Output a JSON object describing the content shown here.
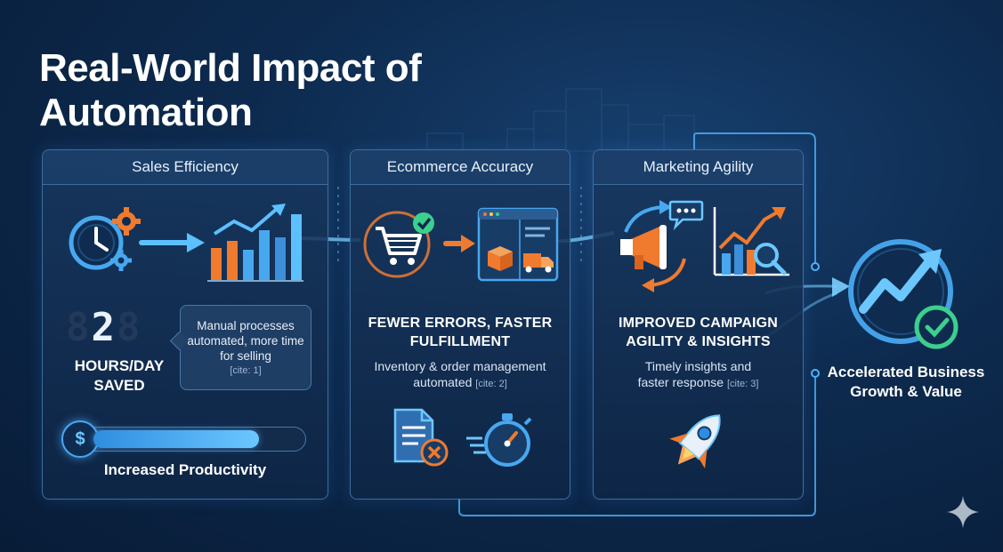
{
  "title": "Real-World Impact of Automation",
  "panels": {
    "sales": {
      "header": "Sales Efficiency",
      "metric_value": "2",
      "metric_label": "HOURS/DAY SAVED",
      "bubble_text": "Manual processes automated, more time for selling",
      "bubble_cite": "[cite: 1]",
      "productivity_label": "Increased Productivity",
      "productivity_level": 0.8,
      "icons": [
        "clock-gears-icon",
        "arrow-right-icon",
        "bar-chart-growth-icon",
        "dollar-icon"
      ]
    },
    "ecommerce": {
      "header": "Ecommerce Accuracy",
      "headline": "FEWER ERRORS, FASTER FULFILLMENT",
      "sub_text": "Inventory & order management automated",
      "sub_cite": "[cite: 2]",
      "icons": [
        "shopping-cart-check-icon",
        "arrow-right-icon",
        "browser-delivery-icon",
        "document-error-icon",
        "stopwatch-icon"
      ]
    },
    "marketing": {
      "header": "Marketing Agility",
      "headline": "IMPROVED CAMPAIGN AGILITY & INSIGHTS",
      "sub_text": "Timely insights and faster response",
      "sub_cite": "[cite: 3]",
      "icons": [
        "megaphone-icon",
        "chat-bubble-icon",
        "chart-magnifier-icon",
        "rocket-icon"
      ]
    }
  },
  "outcome": {
    "label": "Accelerated Business Growth & Value",
    "icon": "growth-check-icon"
  },
  "colors": {
    "background": "#0d2a4e",
    "accent_blue": "#47a8f0",
    "accent_orange": "#f07a2e",
    "check_green": "#3ccf8e"
  }
}
